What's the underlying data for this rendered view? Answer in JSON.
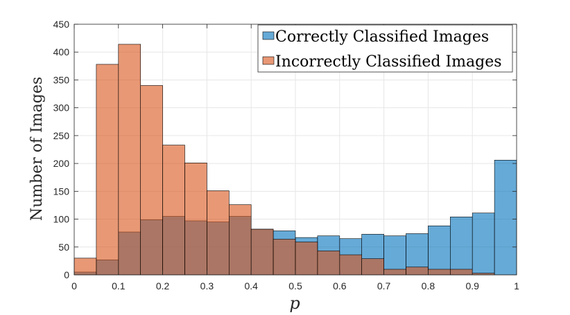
{
  "chart_data": {
    "type": "bar",
    "xlabel": "p",
    "ylabel": "Number of Images",
    "xlim": [
      0,
      1
    ],
    "ylim": [
      0,
      450
    ],
    "x_ticks": [
      "0",
      "0.1",
      "0.2",
      "0.3",
      "0.4",
      "0.5",
      "0.6",
      "0.7",
      "0.8",
      "0.9",
      "1"
    ],
    "y_ticks": [
      "0",
      "50",
      "100",
      "150",
      "200",
      "250",
      "300",
      "350",
      "400",
      "450"
    ],
    "grid": true,
    "legend_position": "top-right",
    "bin_edges": [
      0,
      0.05,
      0.1,
      0.15,
      0.2,
      0.25,
      0.3,
      0.35,
      0.4,
      0.45,
      0.5,
      0.55,
      0.6,
      0.65,
      0.7,
      0.75,
      0.8,
      0.85,
      0.9,
      0.95,
      1
    ],
    "series": [
      {
        "name": "Correctly Classified Images",
        "color": "#0072BD",
        "values": [
          5,
          27,
          77,
          99,
          105,
          97,
          95,
          105,
          82,
          79,
          67,
          70,
          65,
          73,
          70,
          74,
          88,
          104,
          111,
          206
        ]
      },
      {
        "name": "Incorrectly Classified Images",
        "color": "#D95319",
        "values": [
          30,
          378,
          414,
          340,
          233,
          201,
          151,
          126,
          82,
          64,
          59,
          43,
          36,
          29,
          10,
          14,
          10,
          10,
          3,
          0
        ]
      }
    ]
  }
}
